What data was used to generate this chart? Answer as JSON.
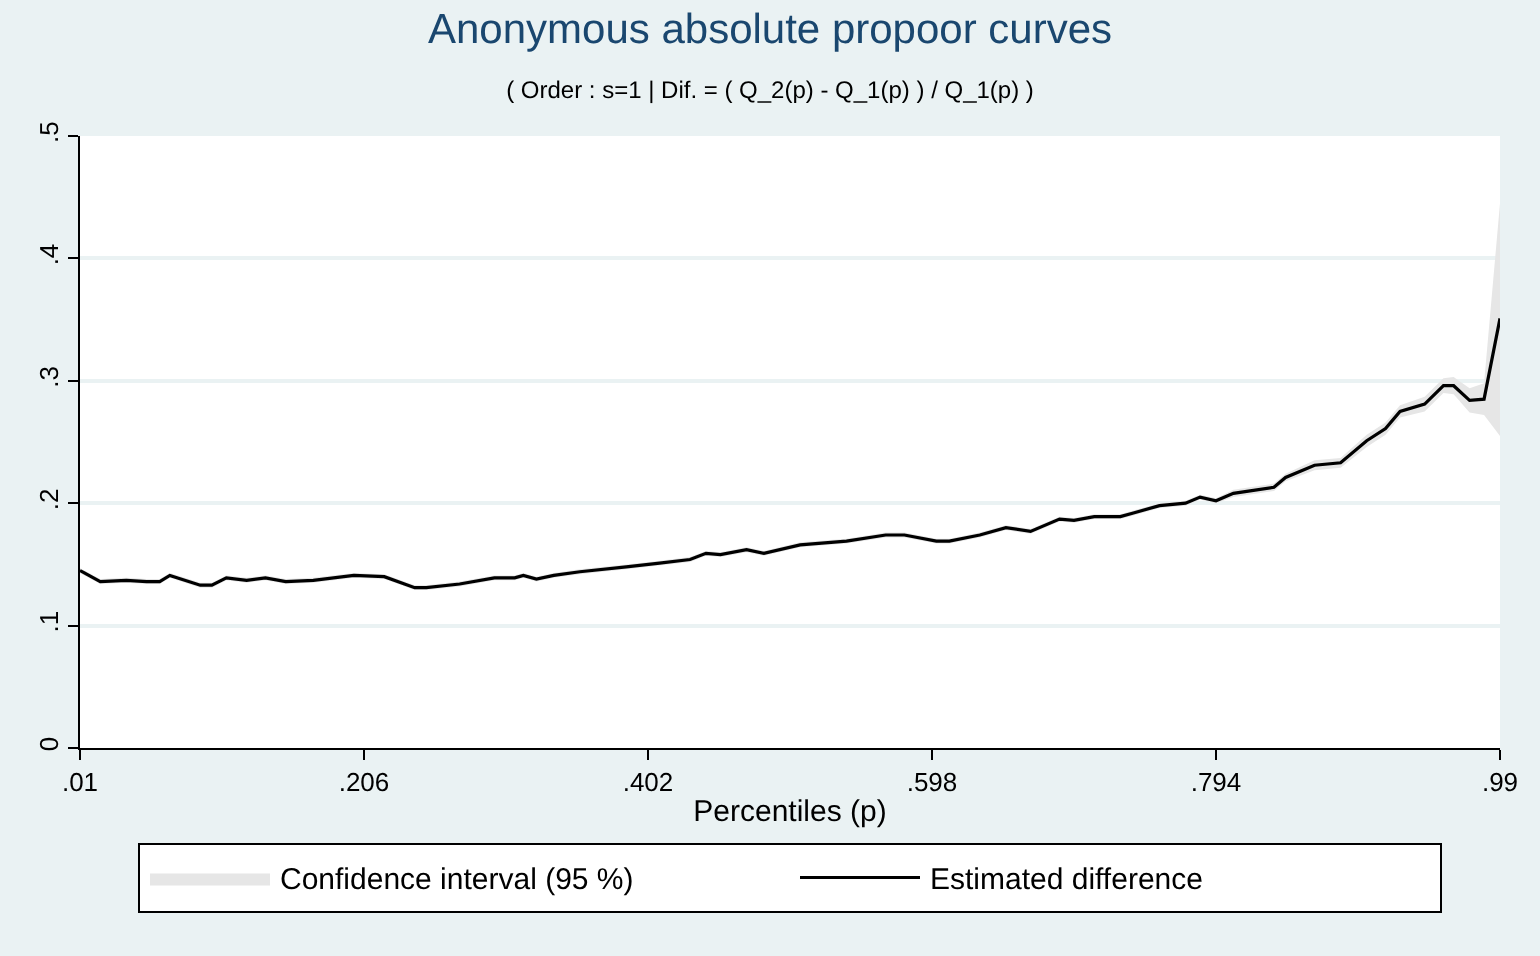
{
  "chart_data": {
    "type": "line",
    "title": "Anonymous absolute propoor curves",
    "subtitle": "( Order : s=1 | Dif. = ( Q_2(p) - Q_1(p) ) / Q_1(p) )",
    "xlabel": "Percentiles (p)",
    "x": [
      0.01,
      0.013,
      0.024,
      0.042,
      0.056,
      0.065,
      0.072,
      0.093,
      0.101,
      0.111,
      0.125,
      0.138,
      0.152,
      0.171,
      0.199,
      0.22,
      0.241,
      0.249,
      0.272,
      0.296,
      0.31,
      0.316,
      0.325,
      0.337,
      0.355,
      0.387,
      0.41,
      0.431,
      0.442,
      0.452,
      0.47,
      0.482,
      0.507,
      0.539,
      0.566,
      0.579,
      0.601,
      0.61,
      0.631,
      0.649,
      0.666,
      0.686,
      0.696,
      0.71,
      0.728,
      0.737,
      0.755,
      0.773,
      0.783,
      0.794,
      0.806,
      0.834,
      0.842,
      0.862,
      0.88,
      0.898,
      0.911,
      0.921,
      0.938,
      0.951,
      0.958,
      0.969,
      0.979,
      0.99
    ],
    "series": [
      {
        "name": "Estimated difference",
        "color": "#000000",
        "values": [
          0.145,
          0.143,
          0.136,
          0.137,
          0.136,
          0.136,
          0.141,
          0.133,
          0.133,
          0.139,
          0.137,
          0.139,
          0.136,
          0.137,
          0.141,
          0.14,
          0.131,
          0.131,
          0.134,
          0.139,
          0.139,
          0.141,
          0.138,
          0.141,
          0.144,
          0.148,
          0.151,
          0.154,
          0.159,
          0.158,
          0.162,
          0.159,
          0.166,
          0.169,
          0.174,
          0.174,
          0.169,
          0.169,
          0.174,
          0.18,
          0.177,
          0.187,
          0.186,
          0.189,
          0.189,
          0.192,
          0.198,
          0.2,
          0.205,
          0.202,
          0.208,
          0.213,
          0.221,
          0.231,
          0.233,
          0.251,
          0.261,
          0.275,
          0.281,
          0.296,
          0.296,
          0.284,
          0.285,
          0.351
        ],
        "lower": [
          0.143,
          0.141,
          0.134,
          0.135,
          0.134,
          0.134,
          0.139,
          0.131,
          0.131,
          0.137,
          0.135,
          0.137,
          0.134,
          0.135,
          0.139,
          0.138,
          0.129,
          0.129,
          0.132,
          0.137,
          0.137,
          0.139,
          0.136,
          0.139,
          0.142,
          0.146,
          0.149,
          0.152,
          0.157,
          0.156,
          0.16,
          0.157,
          0.164,
          0.167,
          0.172,
          0.172,
          0.167,
          0.167,
          0.172,
          0.178,
          0.175,
          0.185,
          0.184,
          0.187,
          0.187,
          0.19,
          0.196,
          0.198,
          0.203,
          0.2,
          0.205,
          0.21,
          0.218,
          0.227,
          0.229,
          0.246,
          0.256,
          0.27,
          0.275,
          0.29,
          0.289,
          0.274,
          0.272,
          0.255
        ],
        "upper": [
          0.147,
          0.145,
          0.138,
          0.139,
          0.138,
          0.138,
          0.143,
          0.135,
          0.135,
          0.141,
          0.139,
          0.141,
          0.138,
          0.139,
          0.143,
          0.142,
          0.133,
          0.133,
          0.136,
          0.141,
          0.141,
          0.143,
          0.14,
          0.143,
          0.146,
          0.15,
          0.153,
          0.156,
          0.161,
          0.16,
          0.164,
          0.161,
          0.168,
          0.171,
          0.176,
          0.176,
          0.171,
          0.171,
          0.176,
          0.182,
          0.179,
          0.189,
          0.188,
          0.191,
          0.191,
          0.194,
          0.2,
          0.202,
          0.207,
          0.204,
          0.211,
          0.216,
          0.224,
          0.235,
          0.237,
          0.256,
          0.266,
          0.28,
          0.287,
          0.302,
          0.303,
          0.294,
          0.298,
          0.445
        ]
      }
    ],
    "annotations": [
      "Confidence interval (95 %)"
    ],
    "xlim": [
      0.01,
      0.99
    ],
    "ylim": [
      0,
      0.5
    ],
    "xticks": [
      {
        "value": 0.01,
        "label": ".01"
      },
      {
        "value": 0.206,
        "label": ".206"
      },
      {
        "value": 0.402,
        "label": ".402"
      },
      {
        "value": 0.598,
        "label": ".598"
      },
      {
        "value": 0.794,
        "label": ".794"
      },
      {
        "value": 0.99,
        "label": ".99"
      }
    ],
    "yticks": [
      0,
      {
        "value": 0.1,
        "label": ".1"
      },
      {
        "value": 0.2,
        "label": ".2"
      },
      {
        "value": 0.3,
        "label": ".3"
      },
      {
        "value": 0.4,
        "label": ".4"
      },
      {
        "value": 0.5,
        "label": ".5"
      }
    ],
    "grid": "y",
    "legend": "bottom",
    "line_style": "solid",
    "marker": "none"
  }
}
